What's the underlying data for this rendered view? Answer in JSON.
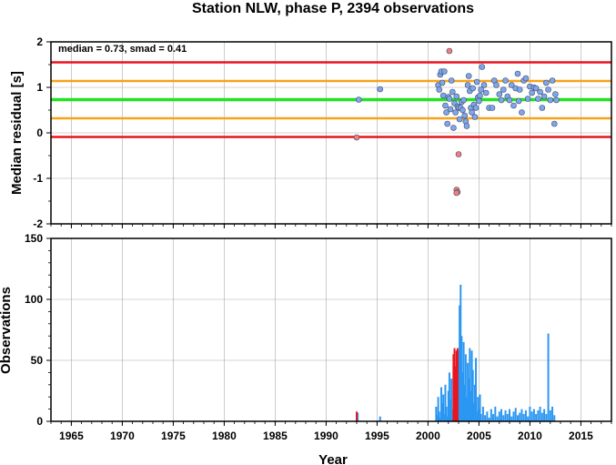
{
  "chart_data": [
    {
      "type": "scatter",
      "title": "Station NLW, phase P, 2394 observations",
      "xlabel": "",
      "ylabel": "Median residual [s]",
      "xlim": [
        1963,
        2018
      ],
      "ylim": [
        -2,
        2
      ],
      "yticks": [
        "2",
        "1",
        "0",
        "-1",
        "-2"
      ],
      "grid": true,
      "annotation": "median = 0.73, smad = 0.41",
      "reference_lines": [
        {
          "y": 1.55,
          "color": "#e8141e",
          "role": "outer-upper"
        },
        {
          "y": 1.14,
          "color": "#f7a21a",
          "role": "inner-upper"
        },
        {
          "y": 0.73,
          "color": "#22e322",
          "role": "median"
        },
        {
          "y": 0.32,
          "color": "#f7a21a",
          "role": "inner-lower"
        },
        {
          "y": -0.09,
          "color": "#e8141e",
          "role": "outer-lower"
        }
      ],
      "series": [
        {
          "color": "#7fa6ea",
          "points": [
            [
              1993.2,
              0.73
            ],
            [
              1995.3,
              0.96
            ],
            [
              2001.0,
              1.05
            ],
            [
              2001.1,
              0.95
            ],
            [
              2001.2,
              1.28
            ],
            [
              2001.3,
              1.35
            ],
            [
              2001.4,
              1.1
            ],
            [
              2001.5,
              0.82
            ],
            [
              2001.6,
              1.35
            ],
            [
              2001.7,
              0.6
            ],
            [
              2001.8,
              0.45
            ],
            [
              2001.9,
              0.2
            ],
            [
              2002.0,
              0.79
            ],
            [
              2002.1,
              0.75
            ],
            [
              2002.2,
              0.52
            ],
            [
              2002.3,
              1.15
            ],
            [
              2002.4,
              0.9
            ],
            [
              2002.5,
              0.11
            ],
            [
              2002.6,
              0.65
            ],
            [
              2002.7,
              0.45
            ],
            [
              2002.8,
              0.8
            ],
            [
              2002.9,
              0.58
            ],
            [
              2003.0,
              0.55
            ],
            [
              2003.1,
              0.3
            ],
            [
              2003.2,
              0.55
            ],
            [
              2003.3,
              0.68
            ],
            [
              2003.4,
              0.5
            ],
            [
              2003.5,
              0.72
            ],
            [
              2003.6,
              0.38
            ],
            [
              2003.7,
              0.25
            ],
            [
              2003.8,
              0.15
            ],
            [
              2003.9,
              1.05
            ],
            [
              2004.0,
              1.25
            ],
            [
              2004.1,
              0.92
            ],
            [
              2004.2,
              0.55
            ],
            [
              2004.3,
              0.45
            ],
            [
              2004.4,
              0.98
            ],
            [
              2004.5,
              0.62
            ],
            [
              2004.6,
              0.35
            ],
            [
              2004.7,
              0.55
            ],
            [
              2004.8,
              1.12
            ],
            [
              2004.9,
              0.78
            ],
            [
              2005.0,
              0.7
            ],
            [
              2005.1,
              0.82
            ],
            [
              2005.2,
              0.95
            ],
            [
              2005.3,
              1.45
            ],
            [
              2005.5,
              1.05
            ],
            [
              2005.7,
              0.88
            ],
            [
              2006.0,
              0.55
            ],
            [
              2006.3,
              0.55
            ],
            [
              2006.5,
              1.15
            ],
            [
              2006.7,
              1.05
            ],
            [
              2007.0,
              0.85
            ],
            [
              2007.2,
              0.72
            ],
            [
              2007.4,
              0.95
            ],
            [
              2007.6,
              1.15
            ],
            [
              2007.8,
              0.8
            ],
            [
              2008.0,
              0.72
            ],
            [
              2008.2,
              1.05
            ],
            [
              2008.4,
              0.6
            ],
            [
              2008.6,
              0.98
            ],
            [
              2008.8,
              1.3
            ],
            [
              2008.9,
              0.7
            ],
            [
              2009.0,
              0.95
            ],
            [
              2009.2,
              0.45
            ],
            [
              2009.4,
              1.15
            ],
            [
              2009.6,
              1.2
            ],
            [
              2009.8,
              0.75
            ],
            [
              2010.0,
              1.02
            ],
            [
              2010.2,
              0.88
            ],
            [
              2010.4,
              1.0
            ],
            [
              2010.6,
              0.98
            ],
            [
              2010.8,
              0.75
            ],
            [
              2011.0,
              0.9
            ],
            [
              2011.2,
              0.55
            ],
            [
              2011.4,
              0.8
            ],
            [
              2011.6,
              1.1
            ],
            [
              2011.8,
              0.95
            ],
            [
              2012.0,
              0.72
            ],
            [
              2012.2,
              1.15
            ],
            [
              2012.4,
              0.2
            ],
            [
              2012.5,
              0.85
            ],
            [
              2012.6,
              0.72
            ]
          ]
        },
        {
          "color": "#f07e7e",
          "points": [
            [
              1993.0,
              -0.1
            ],
            [
              2002.1,
              1.8
            ],
            [
              2002.8,
              -1.25
            ],
            [
              2002.9,
              -1.3
            ],
            [
              2002.8,
              -1.32
            ],
            [
              2003.0,
              -0.47
            ]
          ]
        }
      ]
    },
    {
      "type": "bar",
      "xlabel": "Year",
      "ylabel": "Observations",
      "xlim": [
        1963,
        2018
      ],
      "ylim": [
        0,
        150
      ],
      "xticks": [
        "1965",
        "1970",
        "1975",
        "1980",
        "1985",
        "1990",
        "1995",
        "2000",
        "2005",
        "2010",
        "2015"
      ],
      "yticks": [
        "150",
        "100",
        "50",
        "0"
      ],
      "grid": true,
      "series": [
        {
          "color": "#2b97f2",
          "bars": [
            [
              1993.1,
              7
            ],
            [
              1995.3,
              4
            ],
            [
              2000.8,
              12
            ],
            [
              2000.9,
              5
            ],
            [
              2001.0,
              20
            ],
            [
              2001.1,
              8
            ],
            [
              2001.2,
              3
            ],
            [
              2001.3,
              28
            ],
            [
              2001.4,
              15
            ],
            [
              2001.5,
              22
            ],
            [
              2001.6,
              6
            ],
            [
              2001.7,
              30
            ],
            [
              2001.8,
              12
            ],
            [
              2001.9,
              4
            ],
            [
              2002.0,
              25
            ],
            [
              2002.1,
              40
            ],
            [
              2002.2,
              18
            ],
            [
              2002.3,
              35
            ],
            [
              2002.4,
              10
            ],
            [
              2002.5,
              45
            ],
            [
              2002.6,
              28
            ],
            [
              2002.7,
              14
            ],
            [
              2003.0,
              58
            ],
            [
              2003.1,
              95
            ],
            [
              2003.2,
              112
            ],
            [
              2003.3,
              70
            ],
            [
              2003.4,
              40
            ],
            [
              2003.5,
              65
            ],
            [
              2003.6,
              30
            ],
            [
              2003.7,
              55
            ],
            [
              2003.8,
              20
            ],
            [
              2003.9,
              48
            ],
            [
              2004.0,
              35
            ],
            [
              2004.1,
              60
            ],
            [
              2004.2,
              25
            ],
            [
              2004.3,
              58
            ],
            [
              2004.4,
              42
            ],
            [
              2004.5,
              15
            ],
            [
              2004.6,
              30
            ],
            [
              2004.7,
              52
            ],
            [
              2004.8,
              8
            ],
            [
              2004.9,
              20
            ],
            [
              2005.0,
              10
            ],
            [
              2005.1,
              22
            ],
            [
              2005.2,
              6
            ],
            [
              2005.4,
              12
            ],
            [
              2005.6,
              5
            ],
            [
              2005.8,
              8
            ],
            [
              2006.0,
              3
            ],
            [
              2006.2,
              10
            ],
            [
              2006.4,
              6
            ],
            [
              2006.6,
              12
            ],
            [
              2006.8,
              4
            ],
            [
              2007.0,
              8
            ],
            [
              2007.2,
              10
            ],
            [
              2007.4,
              5
            ],
            [
              2007.6,
              9
            ],
            [
              2007.8,
              6
            ],
            [
              2008.0,
              10
            ],
            [
              2008.2,
              4
            ],
            [
              2008.4,
              8
            ],
            [
              2008.6,
              11
            ],
            [
              2008.8,
              5
            ],
            [
              2009.0,
              7
            ],
            [
              2009.2,
              10
            ],
            [
              2009.4,
              6
            ],
            [
              2009.6,
              9
            ],
            [
              2009.8,
              4
            ],
            [
              2010.0,
              12
            ],
            [
              2010.2,
              8
            ],
            [
              2010.4,
              10
            ],
            [
              2010.6,
              6
            ],
            [
              2010.8,
              9
            ],
            [
              2011.0,
              12
            ],
            [
              2011.2,
              7
            ],
            [
              2011.4,
              10
            ],
            [
              2011.6,
              6
            ],
            [
              2011.8,
              72
            ],
            [
              2012.0,
              9
            ],
            [
              2012.2,
              12
            ],
            [
              2012.4,
              5
            ]
          ]
        },
        {
          "color": "#e8141e",
          "bars": [
            [
              1993.0,
              8
            ],
            [
              2002.5,
              55
            ],
            [
              2002.6,
              60
            ],
            [
              2002.7,
              45
            ],
            [
              2002.8,
              58
            ],
            [
              2002.9,
              60
            ]
          ]
        }
      ]
    }
  ]
}
